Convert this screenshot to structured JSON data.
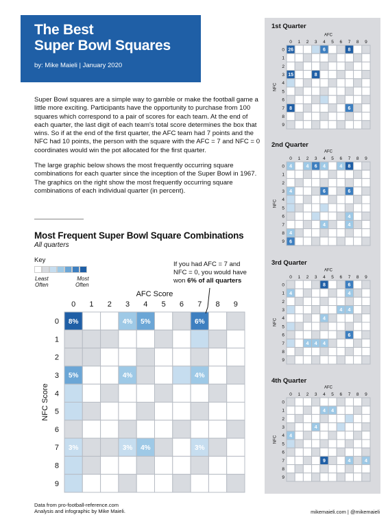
{
  "header": {
    "title_line1": "The Best",
    "title_line2": "Super Bowl Squares",
    "byline": "by: Mike Maieli   |   January 2020"
  },
  "intro": {
    "p1": "Super Bowl squares are a simple way to gamble or make the football game a little more exciting. Participants have the opportunity to purchase from 100 squares which correspond to a pair of scores for each team. At the end of each quarter, the last digit of each team's total score determines the box that wins. So if at the end of the first quarter, the AFC team had 7 points and the NFC had 10 points, the person with the square with the AFC = 7 and NFC = 0 coordinates would win the pot allocated for the first quarter.",
    "p2": "The large graphic below shows the most frequently occurring square combinations for each quarter since the inception of the Super Bowl in 1967. The graphics on the right show the most frequently occurring square combinations of each individual quarter (in percent)."
  },
  "key": {
    "title": "Key",
    "least_line1": "Least",
    "least_line2": "Often",
    "most_line1": "Most",
    "most_line2": "Often",
    "colors": [
      "#ffffff",
      "#d8dbe0",
      "#c6ddef",
      "#9ec9e6",
      "#6ba6d6",
      "#3d7fc0",
      "#1f5fa6"
    ]
  },
  "annotation": {
    "line1": "If you had AFC = 7 and",
    "line2": "NFC = 0, you would have",
    "line3_prefix": "won ",
    "line3_bold": "6% of all quarters"
  },
  "footer": {
    "left_line1": "Data from pro-football-reference.com",
    "left_line2": "Analysis and infographic by Mike Maieli.",
    "right": "mikemaieli.com | @mikemaieli"
  },
  "colors": {
    "brand_blue": "#1f5fa6",
    "empty_cell": "#d8dbe0",
    "panel_bg": "#d9dade"
  },
  "chart_data": [
    {
      "type": "heatmap",
      "title": "Most Frequent Super Bowl Square Combinations",
      "subtitle": "All quarters",
      "xlabel": "AFC Score",
      "ylabel": "NFC Score",
      "x": [
        0,
        1,
        2,
        3,
        4,
        5,
        6,
        7,
        8,
        9
      ],
      "y": [
        0,
        1,
        2,
        3,
        4,
        5,
        6,
        7,
        8,
        9
      ],
      "unit": "%",
      "cells": [
        {
          "afc": 0,
          "nfc": 0,
          "value": 8,
          "label": "8%"
        },
        {
          "afc": 3,
          "nfc": 0,
          "value": 4,
          "label": "4%"
        },
        {
          "afc": 4,
          "nfc": 0,
          "value": 5,
          "label": "5%"
        },
        {
          "afc": 7,
          "nfc": 0,
          "value": 6,
          "label": "6%"
        },
        {
          "afc": 0,
          "nfc": 3,
          "value": 5,
          "label": "5%"
        },
        {
          "afc": 3,
          "nfc": 3,
          "value": 4,
          "label": "4%"
        },
        {
          "afc": 7,
          "nfc": 3,
          "value": 4,
          "label": "4%"
        },
        {
          "afc": 0,
          "nfc": 7,
          "value": 3,
          "label": "3%"
        },
        {
          "afc": 3,
          "nfc": 7,
          "value": 3,
          "label": "3%"
        },
        {
          "afc": 4,
          "nfc": 7,
          "value": 4,
          "label": "4%"
        },
        {
          "afc": 7,
          "nfc": 7,
          "value": 3,
          "label": "3%"
        },
        {
          "afc": 7,
          "nfc": 1,
          "value": 2,
          "label": ""
        },
        {
          "afc": 0,
          "nfc": 4,
          "value": 2,
          "label": ""
        },
        {
          "afc": 0,
          "nfc": 5,
          "value": 2,
          "label": ""
        },
        {
          "afc": 6,
          "nfc": 3,
          "value": 2,
          "label": ""
        },
        {
          "afc": 0,
          "nfc": 8,
          "value": 2,
          "label": ""
        },
        {
          "afc": 0,
          "nfc": 9,
          "value": 2,
          "label": ""
        },
        {
          "afc": 1,
          "nfc": 1,
          "value": 0,
          "label": ""
        },
        {
          "afc": 2,
          "nfc": 1,
          "value": 0,
          "label": ""
        },
        {
          "afc": 0,
          "nfc": 1,
          "value": 0,
          "label": ""
        },
        {
          "afc": 0,
          "nfc": 2,
          "value": 0,
          "label": ""
        },
        {
          "afc": 1,
          "nfc": 7,
          "value": 0,
          "label": ""
        },
        {
          "afc": 2,
          "nfc": 7,
          "value": 0,
          "label": ""
        },
        {
          "afc": 4,
          "nfc": 3,
          "value": 0,
          "label": ""
        },
        {
          "afc": 9,
          "nfc": 0,
          "value": 0,
          "label": ""
        }
      ]
    },
    {
      "type": "heatmap",
      "title": "1st Quarter",
      "xlabel": "AFC",
      "ylabel": "NFC",
      "unit": "%",
      "cells": [
        {
          "afc": 0,
          "nfc": 0,
          "value": 26,
          "label": "26"
        },
        {
          "afc": 4,
          "nfc": 0,
          "value": 6,
          "label": "6"
        },
        {
          "afc": 7,
          "nfc": 0,
          "value": 8,
          "label": "8"
        },
        {
          "afc": 0,
          "nfc": 3,
          "value": 15,
          "label": "15"
        },
        {
          "afc": 3,
          "nfc": 3,
          "value": 8,
          "label": "8"
        },
        {
          "afc": 0,
          "nfc": 7,
          "value": 8,
          "label": "8"
        },
        {
          "afc": 7,
          "nfc": 7,
          "value": 6,
          "label": "6"
        },
        {
          "afc": 3,
          "nfc": 0,
          "value": 2,
          "label": ""
        },
        {
          "afc": 4,
          "nfc": 6,
          "value": 2,
          "label": ""
        },
        {
          "afc": 0,
          "nfc": 4,
          "value": 2,
          "label": ""
        }
      ]
    },
    {
      "type": "heatmap",
      "title": "2nd Quarter",
      "xlabel": "AFC",
      "ylabel": "NFC",
      "unit": "%",
      "cells": [
        {
          "afc": 0,
          "nfc": 0,
          "value": 4,
          "label": "4"
        },
        {
          "afc": 2,
          "nfc": 0,
          "value": 4,
          "label": "4"
        },
        {
          "afc": 3,
          "nfc": 0,
          "value": 6,
          "label": "6"
        },
        {
          "afc": 4,
          "nfc": 0,
          "value": 4,
          "label": "4"
        },
        {
          "afc": 6,
          "nfc": 0,
          "value": 4,
          "label": "4"
        },
        {
          "afc": 7,
          "nfc": 0,
          "value": 8,
          "label": "8"
        },
        {
          "afc": 0,
          "nfc": 3,
          "value": 4,
          "label": "4"
        },
        {
          "afc": 4,
          "nfc": 3,
          "value": 6,
          "label": "6"
        },
        {
          "afc": 7,
          "nfc": 3,
          "value": 6,
          "label": "6"
        },
        {
          "afc": 7,
          "nfc": 6,
          "value": 4,
          "label": "4"
        },
        {
          "afc": 4,
          "nfc": 7,
          "value": 4,
          "label": "4"
        },
        {
          "afc": 7,
          "nfc": 7,
          "value": 4,
          "label": "4"
        },
        {
          "afc": 0,
          "nfc": 8,
          "value": 4,
          "label": "4"
        },
        {
          "afc": 0,
          "nfc": 9,
          "value": 6,
          "label": "6"
        },
        {
          "afc": 0,
          "nfc": 4,
          "value": 2,
          "label": ""
        },
        {
          "afc": 0,
          "nfc": 5,
          "value": 2,
          "label": ""
        },
        {
          "afc": 4,
          "nfc": 5,
          "value": 2,
          "label": ""
        },
        {
          "afc": 3,
          "nfc": 6,
          "value": 2,
          "label": ""
        }
      ]
    },
    {
      "type": "heatmap",
      "title": "3rd Quarter",
      "xlabel": "AFC",
      "ylabel": "NFC",
      "unit": "%",
      "cells": [
        {
          "afc": 4,
          "nfc": 0,
          "value": 8,
          "label": "8"
        },
        {
          "afc": 7,
          "nfc": 0,
          "value": 6,
          "label": "6"
        },
        {
          "afc": 0,
          "nfc": 1,
          "value": 4,
          "label": "4"
        },
        {
          "afc": 7,
          "nfc": 1,
          "value": 4,
          "label": "4"
        },
        {
          "afc": 6,
          "nfc": 3,
          "value": 4,
          "label": "4"
        },
        {
          "afc": 7,
          "nfc": 3,
          "value": 4,
          "label": "4"
        },
        {
          "afc": 4,
          "nfc": 4,
          "value": 4,
          "label": "4"
        },
        {
          "afc": 7,
          "nfc": 6,
          "value": 6,
          "label": "6"
        },
        {
          "afc": 2,
          "nfc": 7,
          "value": 4,
          "label": "4"
        },
        {
          "afc": 3,
          "nfc": 7,
          "value": 4,
          "label": "4"
        },
        {
          "afc": 4,
          "nfc": 7,
          "value": 4,
          "label": "4"
        },
        {
          "afc": 0,
          "nfc": 3,
          "value": 2,
          "label": ""
        },
        {
          "afc": 0,
          "nfc": 5,
          "value": 2,
          "label": ""
        },
        {
          "afc": 0,
          "nfc": 7,
          "value": 2,
          "label": ""
        }
      ]
    },
    {
      "type": "heatmap",
      "title": "4th Quarter",
      "xlabel": "AFC",
      "ylabel": "NFC",
      "unit": "%",
      "cells": [
        {
          "afc": 4,
          "nfc": 1,
          "value": 4,
          "label": "4"
        },
        {
          "afc": 5,
          "nfc": 1,
          "value": 4,
          "label": "4"
        },
        {
          "afc": 3,
          "nfc": 3,
          "value": 4,
          "label": "4"
        },
        {
          "afc": 0,
          "nfc": 4,
          "value": 4,
          "label": "4"
        },
        {
          "afc": 4,
          "nfc": 7,
          "value": 9,
          "label": "9"
        },
        {
          "afc": 7,
          "nfc": 7,
          "value": 4,
          "label": "4"
        },
        {
          "afc": 9,
          "nfc": 7,
          "value": 4,
          "label": "4"
        },
        {
          "afc": 0,
          "nfc": 5,
          "value": 2,
          "label": ""
        },
        {
          "afc": 6,
          "nfc": 3,
          "value": 2,
          "label": ""
        },
        {
          "afc": 7,
          "nfc": 2,
          "value": 2,
          "label": ""
        }
      ]
    }
  ]
}
